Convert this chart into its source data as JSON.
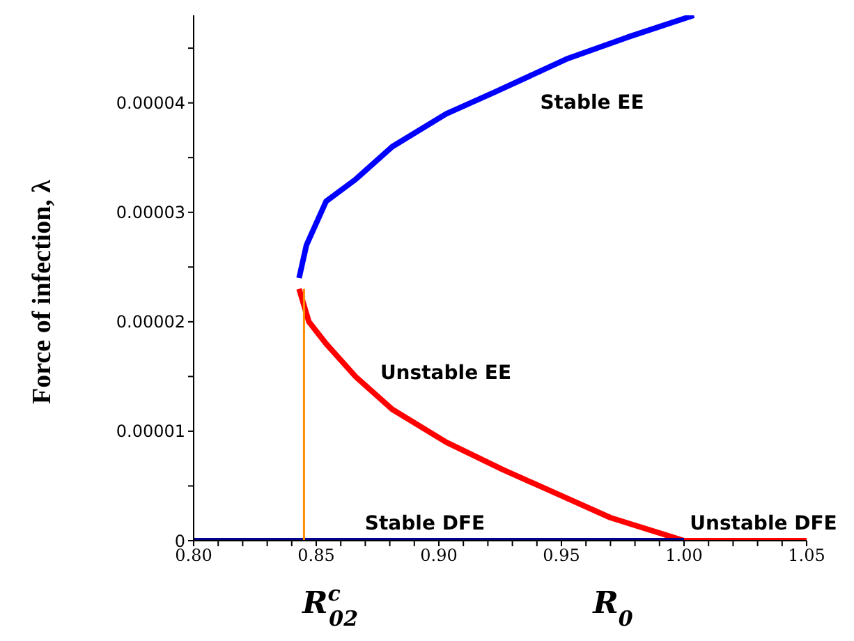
{
  "chart_data": {
    "type": "line",
    "xlabel": "R$_{0}$",
    "ylabel": "Force of infection, λ",
    "xlim": [
      0.8,
      1.05
    ],
    "xticks": [
      {
        "value": 0.8,
        "label": "0.80"
      },
      {
        "value": 0.81,
        "label": null
      },
      {
        "value": 0.82,
        "label": null
      },
      {
        "value": 0.83,
        "label": null
      },
      {
        "value": 0.84,
        "label": null
      },
      {
        "value": 0.85,
        "label": "0.85"
      },
      {
        "value": 0.86,
        "label": null
      },
      {
        "value": 0.87,
        "label": null
      },
      {
        "value": 0.88,
        "label": null
      },
      {
        "value": 0.89,
        "label": null
      },
      {
        "value": 0.9,
        "label": "0.90"
      },
      {
        "value": 0.91,
        "label": null
      },
      {
        "value": 0.92,
        "label": null
      },
      {
        "value": 0.93,
        "label": null
      },
      {
        "value": 0.94,
        "label": null
      },
      {
        "value": 0.95,
        "label": "0.95"
      },
      {
        "value": 0.96,
        "label": null
      },
      {
        "value": 0.97,
        "label": null
      },
      {
        "value": 0.98,
        "label": null
      },
      {
        "value": 0.99,
        "label": null
      },
      {
        "value": 1.0,
        "label": "1.00"
      },
      {
        "value": 1.01,
        "label": null
      },
      {
        "value": 1.02,
        "label": null
      },
      {
        "value": 1.03,
        "label": null
      },
      {
        "value": 1.04,
        "label": null
      },
      {
        "value": 1.05,
        "label": "1.05"
      }
    ],
    "ylim": [
      0,
      4.8e-05
    ],
    "yticks": [
      0,
      {
        "value": 5e-06,
        "label": null
      },
      {
        "value": 1e-05,
        "label": "0.00001"
      },
      {
        "value": 1.5e-05,
        "label": null
      },
      {
        "value": 2e-05,
        "label": "0.00002"
      },
      {
        "value": 2.5e-05,
        "label": null
      },
      {
        "value": 3e-05,
        "label": "0.00003"
      },
      {
        "value": 3.5e-05,
        "label": null
      },
      {
        "value": 4e-05,
        "label": "0.00004"
      },
      {
        "value": 4.5e-05,
        "label": null
      }
    ],
    "marker": "none",
    "line_style": "solid",
    "series": [
      {
        "color": "#0000ff",
        "x": [
          0.843,
          0.846,
          0.854,
          0.866,
          0.881,
          0.903,
          0.923,
          0.952,
          0.977,
          1.004
        ],
        "values": [
          2.4e-05,
          2.7e-05,
          3.1e-05,
          3.3e-05,
          3.6e-05,
          3.9e-05,
          4.1e-05,
          4.4e-05,
          4.6e-05,
          4.8e-05
        ]
      },
      {
        "color": "#ff0000",
        "x": [
          0.843,
          0.847,
          0.854,
          0.866,
          0.881,
          0.903,
          0.926,
          0.948,
          0.97,
          1.0,
          1.05
        ],
        "values": [
          2.3e-05,
          2e-05,
          1.8e-05,
          1.5e-05,
          1.2e-05,
          9e-06,
          6.5e-06,
          4.3e-06,
          2.1e-06,
          0,
          0
        ]
      },
      {
        "color": "#00008b",
        "x": [
          0.8,
          1.0
        ],
        "values": [
          0,
          0
        ]
      },
      {
        "color": "#ff8c00",
        "x": [
          0.845,
          0.845
        ],
        "values": [
          0,
          2.3e-05
        ]
      }
    ],
    "annotations": [
      "Stable EE",
      "Unstable EE",
      "Stable DFE",
      "Unstable DFE",
      "R$^{c}$$_{02}$"
    ]
  }
}
